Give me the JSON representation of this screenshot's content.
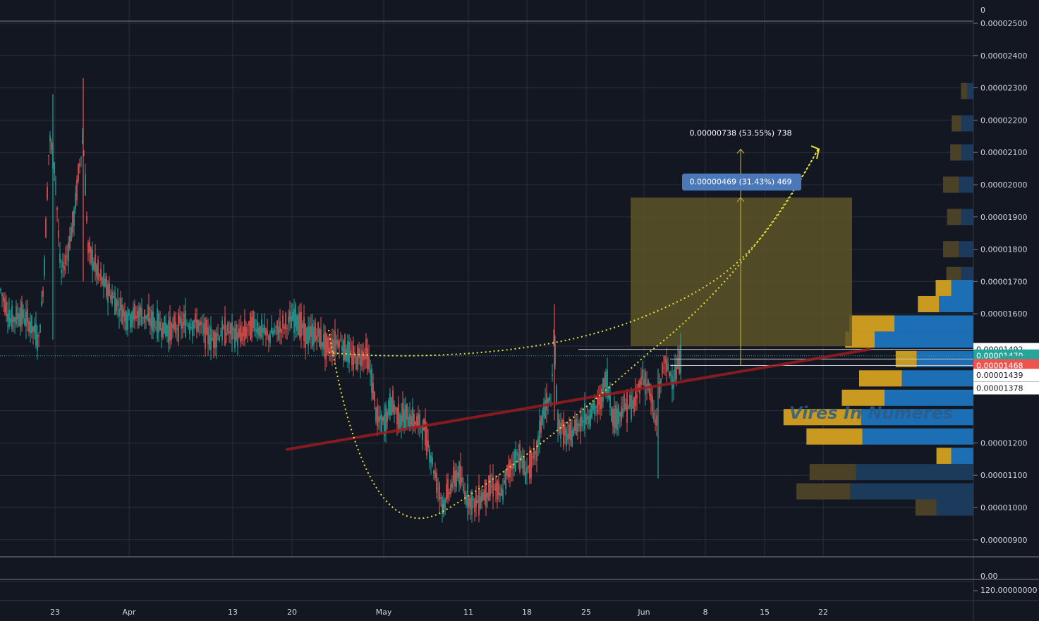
{
  "chart_data": {
    "type": "candlestick",
    "title": "",
    "watermark": "Vires In Numeres",
    "x_tick_labels": [
      "23",
      "Apr",
      "13",
      "20",
      "May",
      "11",
      "18",
      "25",
      "Jun",
      "8",
      "15",
      "22"
    ],
    "y_tick_labels": [
      "0.00002500",
      "0.00002400",
      "0.00002300",
      "0.00002200",
      "0.00002100",
      "0.00002000",
      "0.00001900",
      "0.00001800",
      "0.00001700",
      "0.00001600",
      "0.00001200",
      "0.00001100",
      "0.00001000",
      "0.00000900"
    ],
    "y_tick_values": [
      2.5e-05,
      2.4e-05,
      2.3e-05,
      2.2e-05,
      2.1e-05,
      2e-05,
      1.9e-05,
      1.8e-05,
      1.7e-05,
      1.6e-05,
      1.2e-05,
      1.1e-05,
      1e-05,
      9e-06
    ],
    "ylim": [
      8.3e-06,
      2.58e-05
    ],
    "top_pane_label": "0",
    "lower_pane_labels": [
      "0.00",
      "120.00000000"
    ],
    "price_path": [
      [
        0,
        1.68e-05
      ],
      [
        15,
        1.58e-05
      ],
      [
        30,
        1.6e-05
      ],
      [
        45,
        1.56e-05
      ],
      [
        55,
        1.52e-05
      ],
      [
        62,
        1.7e-05
      ],
      [
        70,
        2.15e-05
      ],
      [
        78,
        2.05e-05
      ],
      [
        86,
        1.72e-05
      ],
      [
        95,
        1.78e-05
      ],
      [
        105,
        1.9e-05
      ],
      [
        112,
        2.05e-05
      ],
      [
        118,
        2.15e-05
      ],
      [
        125,
        1.8e-05
      ],
      [
        140,
        1.72e-05
      ],
      [
        160,
        1.65e-05
      ],
      [
        180,
        1.59e-05
      ],
      [
        200,
        1.6e-05
      ],
      [
        220,
        1.57e-05
      ],
      [
        240,
        1.55e-05
      ],
      [
        260,
        1.57e-05
      ],
      [
        280,
        1.57e-05
      ],
      [
        300,
        1.52e-05
      ],
      [
        320,
        1.55e-05
      ],
      [
        340,
        1.53e-05
      ],
      [
        360,
        1.57e-05
      ],
      [
        380,
        1.53e-05
      ],
      [
        400,
        1.56e-05
      ],
      [
        420,
        1.59e-05
      ],
      [
        435,
        1.53e-05
      ],
      [
        450,
        1.54e-05
      ],
      [
        465,
        1.49e-05
      ],
      [
        480,
        1.52e-05
      ],
      [
        500,
        1.46e-05
      ],
      [
        520,
        1.48e-05
      ],
      [
        528,
        1.38e-05
      ],
      [
        535,
        1.27e-05
      ],
      [
        545,
        1.26e-05
      ],
      [
        555,
        1.33e-05
      ],
      [
        565,
        1.28e-05
      ],
      [
        580,
        1.28e-05
      ],
      [
        600,
        1.25e-05
      ],
      [
        610,
        1.17e-05
      ],
      [
        620,
        1.07e-05
      ],
      [
        628,
        1.01e-05
      ],
      [
        640,
        1.07e-05
      ],
      [
        650,
        1.11e-05
      ],
      [
        660,
        1.04e-05
      ],
      [
        672,
        1.01e-05
      ],
      [
        690,
        1.05e-05
      ],
      [
        700,
        1.07e-05
      ],
      [
        710,
        1.03e-05
      ],
      [
        720,
        1.11e-05
      ],
      [
        735,
        1.17e-05
      ],
      [
        745,
        1.11e-05
      ],
      [
        760,
        1.16e-05
      ],
      [
        770,
        1.3e-05
      ],
      [
        782,
        1.34e-05
      ],
      [
        786,
        1.56e-05
      ],
      [
        790,
        1.27e-05
      ],
      [
        805,
        1.21e-05
      ],
      [
        820,
        1.26e-05
      ],
      [
        835,
        1.29e-05
      ],
      [
        850,
        1.32e-05
      ],
      [
        860,
        1.4e-05
      ],
      [
        870,
        1.27e-05
      ],
      [
        885,
        1.31e-05
      ],
      [
        900,
        1.32e-05
      ],
      [
        910,
        1.41e-05
      ],
      [
        920,
        1.37e-05
      ],
      [
        930,
        1.25e-05
      ],
      [
        940,
        1.45e-05
      ],
      [
        955,
        1.4e-05
      ],
      [
        967,
        1.47e-05
      ]
    ],
    "wick_spikes": [
      [
        75,
        2.28e-05,
        1.52e-05
      ],
      [
        118,
        2.33e-05,
        1.7e-05
      ],
      [
        786,
        1.63e-05,
        1.27e-05
      ],
      [
        933,
        1.43e-05,
        1.09e-05
      ],
      [
        628,
        1.01e-05,
        9.8e-06
      ]
    ],
    "volume_profile": [
      {
        "price": 2.29e-05,
        "up": 0.08,
        "down": 0.05,
        "dim": true
      },
      {
        "price": 2.19e-05,
        "up": 0.12,
        "down": 0.1,
        "dim": true
      },
      {
        "price": 2.1e-05,
        "up": 0.14,
        "down": 0.1,
        "dim": true
      },
      {
        "price": 2e-05,
        "up": 0.2,
        "down": 0.12,
        "dim": true
      },
      {
        "price": 1.9e-05,
        "up": 0.18,
        "down": 0.1,
        "dim": true
      },
      {
        "price": 1.8e-05,
        "up": 0.2,
        "down": 0.12,
        "dim": true
      },
      {
        "price": 1.72e-05,
        "up": 0.19,
        "down": 0.1,
        "dim": true
      },
      {
        "price": 1.68e-05,
        "up": 0.2,
        "down": 0.18,
        "dim": false
      },
      {
        "price": 1.63e-05,
        "up": 0.27,
        "down": 0.28,
        "dim": false
      },
      {
        "price": 1.57e-05,
        "up": 0.58,
        "down": 0.64,
        "dim": false
      },
      {
        "price": 1.52e-05,
        "up": 0.38,
        "down": 0.8,
        "dim": false
      },
      {
        "price": 1.46e-05,
        "up": 0.27,
        "down": 0.46,
        "dim": false
      },
      {
        "price": 1.4e-05,
        "up": 0.55,
        "down": 0.58,
        "dim": false
      },
      {
        "price": 1.34e-05,
        "up": 0.55,
        "down": 0.72,
        "dim": false
      },
      {
        "price": 1.28e-05,
        "up": 1.0,
        "down": 0.91,
        "dim": false
      },
      {
        "price": 1.22e-05,
        "up": 0.72,
        "down": 0.9,
        "dim": false
      },
      {
        "price": 1.16e-05,
        "up": 0.19,
        "down": 0.18,
        "dim": false
      },
      {
        "price": 1.11e-05,
        "up": 0.6,
        "down": 0.95,
        "dim": true
      },
      {
        "price": 1.05e-05,
        "up": 0.69,
        "down": 1.0,
        "dim": true
      },
      {
        "price": 1e-05,
        "up": 0.27,
        "down": 0.3,
        "dim": true
      }
    ]
  },
  "drawings": {
    "measure_outer_label": "0.00000738 (53.55%) 738",
    "measure_inner_label": "0.00000469 (31.43%) 469",
    "target_zone_top": 1.96e-05,
    "target_zone_bottom": 1.5e-05,
    "target_arrow_top": 2.11e-05,
    "measure_base": 1.44e-05,
    "horizontal_levels": [
      1.49e-05,
      1.44e-05
    ]
  },
  "price_tags": [
    {
      "text": "0.00001492",
      "style": "white",
      "price": 1.49e-05
    },
    {
      "text": "0.00001470",
      "style": "teal",
      "price": 1.47e-05
    },
    {
      "text": "25:50",
      "style": "teal-small",
      "price": 1.45e-05
    },
    {
      "text": "0.000",
      "style": "plain",
      "price": 1.45e-05
    },
    {
      "text": "0.00001468",
      "style": "red",
      "price": 1.44e-05
    },
    {
      "text": "0.00001439",
      "style": "white",
      "price": 1.41e-05
    },
    {
      "text": "0.00001378",
      "style": "white",
      "price": 1.37e-05
    }
  ],
  "colors": {
    "background": "#131722",
    "grid": "#2a2e39",
    "up": "#26a69a",
    "down": "#ef5350",
    "trendline": "#9b1c1f",
    "curve": "#e8e33a",
    "zone": "#5c5328",
    "profile_up": "#1d6fb5",
    "profile_down": "#c99a1f",
    "profile_up_dim": "#1b3a5c",
    "profile_down_dim": "#4a4126",
    "measure_label_bg": "#4a78b8"
  }
}
